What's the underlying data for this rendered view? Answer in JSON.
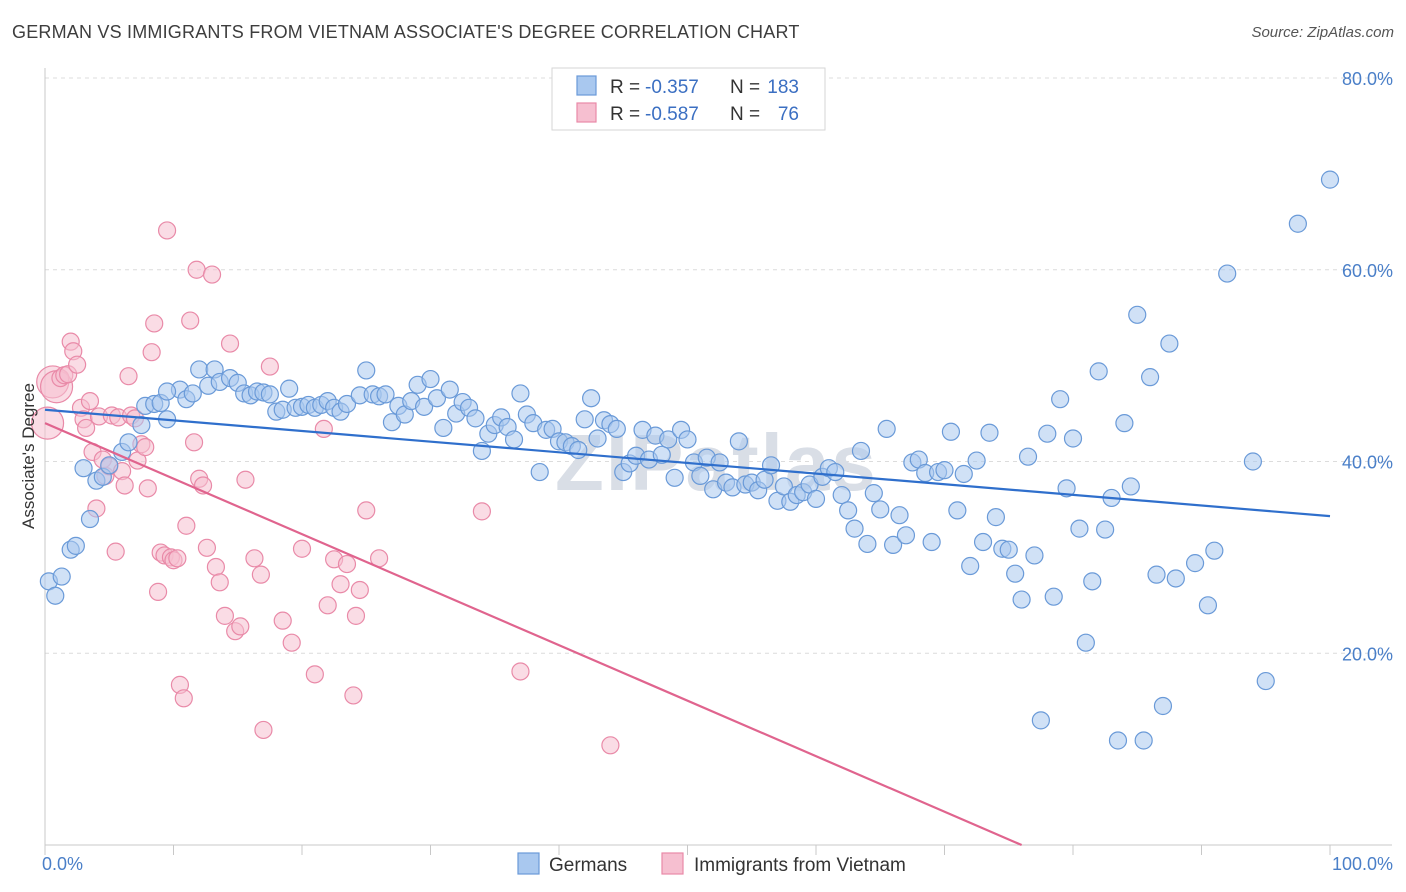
{
  "title": "GERMAN VS IMMIGRANTS FROM VIETNAM ASSOCIATE'S DEGREE CORRELATION CHART",
  "source": "Source: ZipAtlas.com",
  "watermark": "ZIPatlas",
  "colors": {
    "german_fill": "#a9c8ef",
    "german_stroke": "#6a9ad8",
    "german_line": "#2f6fcc",
    "vietnam_fill": "#f6bfd0",
    "vietnam_stroke": "#e98aa8",
    "vietnam_line": "#e0648e",
    "tick_text": "#4a7fc8",
    "grid": "#dcdcdc"
  },
  "legend": {
    "rows": [
      {
        "r_label": "R = ",
        "r_value": "-0.357",
        "n_label": "N = ",
        "n_value": "183"
      },
      {
        "r_label": "R = ",
        "r_value": "-0.587",
        "n_label": "N = ",
        "n_value": "76"
      }
    ]
  },
  "bottom_legend": [
    "Germans",
    "Immigrants from Vietnam"
  ],
  "chart_data": {
    "type": "scatter",
    "xlabel": "",
    "ylabel": "Associate's Degree",
    "xlim": [
      0,
      100
    ],
    "ylim": [
      0,
      80
    ],
    "x_tick_labels": [
      "0.0%",
      "100.0%"
    ],
    "y_ticks": [
      20,
      40,
      60,
      80
    ],
    "y_tick_labels": [
      "20.0%",
      "40.0%",
      "60.0%",
      "80.0%"
    ],
    "grid": true,
    "legend_position": "top-center",
    "series": [
      {
        "name": "Germans",
        "trend": {
          "x": [
            0,
            100
          ],
          "y": [
            45.4,
            34.3
          ]
        },
        "points": [
          [
            0.3,
            27.5
          ],
          [
            0.8,
            26
          ],
          [
            1.3,
            28
          ],
          [
            2,
            30.8
          ],
          [
            2.4,
            31.2
          ],
          [
            3,
            39.3
          ],
          [
            3.5,
            34
          ],
          [
            4,
            38
          ],
          [
            4.5,
            38.4
          ],
          [
            5,
            39.6
          ],
          [
            6,
            41
          ],
          [
            6.5,
            42
          ],
          [
            7.5,
            43.8
          ],
          [
            7.8,
            45.8
          ],
          [
            8.5,
            46
          ],
          [
            9,
            46.1
          ],
          [
            9.5,
            44.4
          ],
          [
            10.5,
            47.5
          ],
          [
            11,
            46.5
          ],
          [
            9.5,
            47.3
          ],
          [
            11.5,
            47.1
          ],
          [
            12,
            49.6
          ],
          [
            12.7,
            47.9
          ],
          [
            13.2,
            49.6
          ],
          [
            13.6,
            48.3
          ],
          [
            14.4,
            48.7
          ],
          [
            15,
            48.2
          ],
          [
            15.5,
            47.1
          ],
          [
            16,
            46.9
          ],
          [
            16.5,
            47.3
          ],
          [
            17,
            47.2
          ],
          [
            17.5,
            47
          ],
          [
            18,
            45.2
          ],
          [
            18.5,
            45.4
          ],
          [
            19,
            47.6
          ],
          [
            19.5,
            45.6
          ],
          [
            20,
            45.7
          ],
          [
            20.5,
            45.9
          ],
          [
            21,
            45.6
          ],
          [
            21.5,
            45.9
          ],
          [
            22,
            46.3
          ],
          [
            22.5,
            45.6
          ],
          [
            23,
            45.2
          ],
          [
            23.5,
            46
          ],
          [
            24.5,
            46.9
          ],
          [
            25,
            49.5
          ],
          [
            25.5,
            47
          ],
          [
            26,
            46.8
          ],
          [
            26.5,
            47
          ],
          [
            27,
            44.1
          ],
          [
            27.5,
            45.8
          ],
          [
            28,
            44.9
          ],
          [
            28.5,
            46.3
          ],
          [
            29,
            48
          ],
          [
            29.5,
            45.7
          ],
          [
            30,
            48.6
          ],
          [
            30.5,
            46.6
          ],
          [
            31,
            43.5
          ],
          [
            31.5,
            47.5
          ],
          [
            32,
            45
          ],
          [
            32.5,
            46.2
          ],
          [
            33,
            45.6
          ],
          [
            33.5,
            44.5
          ],
          [
            34,
            41.1
          ],
          [
            34.5,
            42.9
          ],
          [
            35,
            43.8
          ],
          [
            35.5,
            44.6
          ],
          [
            36,
            43.6
          ],
          [
            36.5,
            42.3
          ],
          [
            37,
            47.1
          ],
          [
            37.5,
            44.9
          ],
          [
            38,
            44
          ],
          [
            38.5,
            38.9
          ],
          [
            39,
            43.3
          ],
          [
            39.5,
            43.4
          ],
          [
            40,
            42.1
          ],
          [
            40.5,
            42
          ],
          [
            41,
            41.6
          ],
          [
            41.5,
            41.2
          ],
          [
            42,
            44.4
          ],
          [
            42.5,
            46.6
          ],
          [
            43,
            42.4
          ],
          [
            43.5,
            44.3
          ],
          [
            44,
            43.9
          ],
          [
            44.5,
            43.4
          ],
          [
            45,
            38.9
          ],
          [
            45.5,
            39.8
          ],
          [
            46,
            40.6
          ],
          [
            46.5,
            43.3
          ],
          [
            47,
            40.2
          ],
          [
            47.5,
            42.7
          ],
          [
            48,
            40.7
          ],
          [
            48.5,
            42.3
          ],
          [
            49,
            38.3
          ],
          [
            49.5,
            43.3
          ],
          [
            50,
            42.3
          ],
          [
            50.5,
            39.9
          ],
          [
            51,
            38.5
          ],
          [
            51.5,
            40.4
          ],
          [
            52,
            37.1
          ],
          [
            52.5,
            39.9
          ],
          [
            53,
            37.8
          ],
          [
            53.5,
            37.3
          ],
          [
            54,
            42.1
          ],
          [
            54.5,
            37.6
          ],
          [
            55,
            37.8
          ],
          [
            55.5,
            37
          ],
          [
            56,
            38.1
          ],
          [
            56.5,
            39.6
          ],
          [
            57,
            35.9
          ],
          [
            57.5,
            37.4
          ],
          [
            58,
            35.8
          ],
          [
            58.5,
            36.5
          ],
          [
            59,
            36.8
          ],
          [
            59.5,
            37.6
          ],
          [
            60,
            36.1
          ],
          [
            60.5,
            38.4
          ],
          [
            61,
            39.3
          ],
          [
            61.5,
            38.9
          ],
          [
            62,
            36.5
          ],
          [
            62.5,
            34.9
          ],
          [
            63,
            33
          ],
          [
            63.5,
            41.1
          ],
          [
            64,
            31.4
          ],
          [
            64.5,
            36.7
          ],
          [
            65,
            35
          ],
          [
            65.5,
            43.4
          ],
          [
            66,
            31.3
          ],
          [
            66.5,
            34.4
          ],
          [
            67,
            32.3
          ],
          [
            67.5,
            39.9
          ],
          [
            68,
            40.2
          ],
          [
            68.5,
            38.8
          ],
          [
            69,
            31.6
          ],
          [
            69.5,
            38.9
          ],
          [
            70,
            39.1
          ],
          [
            70.5,
            43.1
          ],
          [
            71,
            34.9
          ],
          [
            71.5,
            38.7
          ],
          [
            72,
            29.1
          ],
          [
            72.5,
            40.1
          ],
          [
            73,
            31.6
          ],
          [
            73.5,
            43
          ],
          [
            74,
            34.2
          ],
          [
            74.5,
            30.9
          ],
          [
            75,
            30.8
          ],
          [
            75.5,
            28.3
          ],
          [
            76,
            25.6
          ],
          [
            76.5,
            40.5
          ],
          [
            77,
            30.2
          ],
          [
            77.5,
            13
          ],
          [
            78,
            42.9
          ],
          [
            78.5,
            25.9
          ],
          [
            79,
            46.5
          ],
          [
            79.5,
            37.2
          ],
          [
            80,
            42.4
          ],
          [
            80.5,
            33
          ],
          [
            81,
            21.1
          ],
          [
            81.5,
            27.5
          ],
          [
            82,
            49.4
          ],
          [
            82.5,
            32.9
          ],
          [
            83,
            36.2
          ],
          [
            83.5,
            10.9
          ],
          [
            84,
            44
          ],
          [
            84.5,
            37.4
          ],
          [
            85,
            55.3
          ],
          [
            85.5,
            10.9
          ],
          [
            86,
            48.8
          ],
          [
            86.5,
            28.2
          ],
          [
            87,
            14.5
          ],
          [
            87.5,
            52.3
          ],
          [
            88,
            27.8
          ],
          [
            89.5,
            29.4
          ],
          [
            90.5,
            25
          ],
          [
            91,
            30.7
          ],
          [
            92,
            59.6
          ],
          [
            94,
            40
          ],
          [
            95,
            17.1
          ],
          [
            97.5,
            64.8
          ],
          [
            100,
            69.4
          ]
        ]
      },
      {
        "name": "Immigrants from Vietnam",
        "trend": {
          "x": [
            0,
            76
          ],
          "y": [
            44,
            0
          ]
        },
        "points": [
          [
            0.2,
            44
          ],
          [
            0.6,
            48.3
          ],
          [
            0.9,
            47.8
          ],
          [
            1.2,
            48.7
          ],
          [
            1.5,
            49
          ],
          [
            1.8,
            49.1
          ],
          [
            2,
            52.5
          ],
          [
            2.2,
            51.5
          ],
          [
            2.5,
            50.1
          ],
          [
            2.8,
            45.6
          ],
          [
            3,
            44.4
          ],
          [
            3.2,
            43.5
          ],
          [
            3.5,
            46.3
          ],
          [
            3.7,
            41
          ],
          [
            4,
            35.1
          ],
          [
            4.2,
            44.7
          ],
          [
            4.5,
            40.2
          ],
          [
            4.7,
            38.5
          ],
          [
            5,
            39.5
          ],
          [
            5.2,
            44.8
          ],
          [
            5.5,
            30.6
          ],
          [
            5.7,
            44.6
          ],
          [
            6,
            39
          ],
          [
            6.2,
            37.5
          ],
          [
            6.5,
            48.9
          ],
          [
            6.7,
            44.8
          ],
          [
            7,
            44.5
          ],
          [
            7.2,
            40.1
          ],
          [
            7.5,
            41.8
          ],
          [
            7.8,
            41.5
          ],
          [
            8,
            37.2
          ],
          [
            8.3,
            51.4
          ],
          [
            8.5,
            54.4
          ],
          [
            8.8,
            26.4
          ],
          [
            9,
            30.5
          ],
          [
            9.3,
            30.2
          ],
          [
            9.5,
            64.1
          ],
          [
            9.8,
            30
          ],
          [
            10,
            29.7
          ],
          [
            10.3,
            29.9
          ],
          [
            10.5,
            16.7
          ],
          [
            10.8,
            15.3
          ],
          [
            11,
            33.3
          ],
          [
            11.3,
            54.7
          ],
          [
            11.6,
            42
          ],
          [
            11.8,
            60
          ],
          [
            12,
            38.2
          ],
          [
            12.3,
            37.5
          ],
          [
            12.6,
            31
          ],
          [
            13,
            59.5
          ],
          [
            13.3,
            29
          ],
          [
            13.6,
            27.4
          ],
          [
            14,
            23.9
          ],
          [
            14.4,
            52.3
          ],
          [
            14.8,
            22.3
          ],
          [
            15.2,
            22.8
          ],
          [
            15.6,
            38.1
          ],
          [
            16.3,
            29.9
          ],
          [
            16.8,
            28.2
          ],
          [
            17,
            12
          ],
          [
            17.5,
            49.9
          ],
          [
            18.5,
            23.4
          ],
          [
            19.2,
            21.1
          ],
          [
            20,
            30.9
          ],
          [
            21,
            17.8
          ],
          [
            21.7,
            43.4
          ],
          [
            22,
            25
          ],
          [
            22.5,
            29.8
          ],
          [
            23,
            27.2
          ],
          [
            23.5,
            29.3
          ],
          [
            24,
            15.6
          ],
          [
            24.2,
            23.9
          ],
          [
            24.5,
            26.6
          ],
          [
            25,
            34.9
          ],
          [
            26,
            29.9
          ],
          [
            34,
            34.8
          ],
          [
            37,
            18.1
          ],
          [
            44,
            10.4
          ]
        ]
      }
    ]
  }
}
